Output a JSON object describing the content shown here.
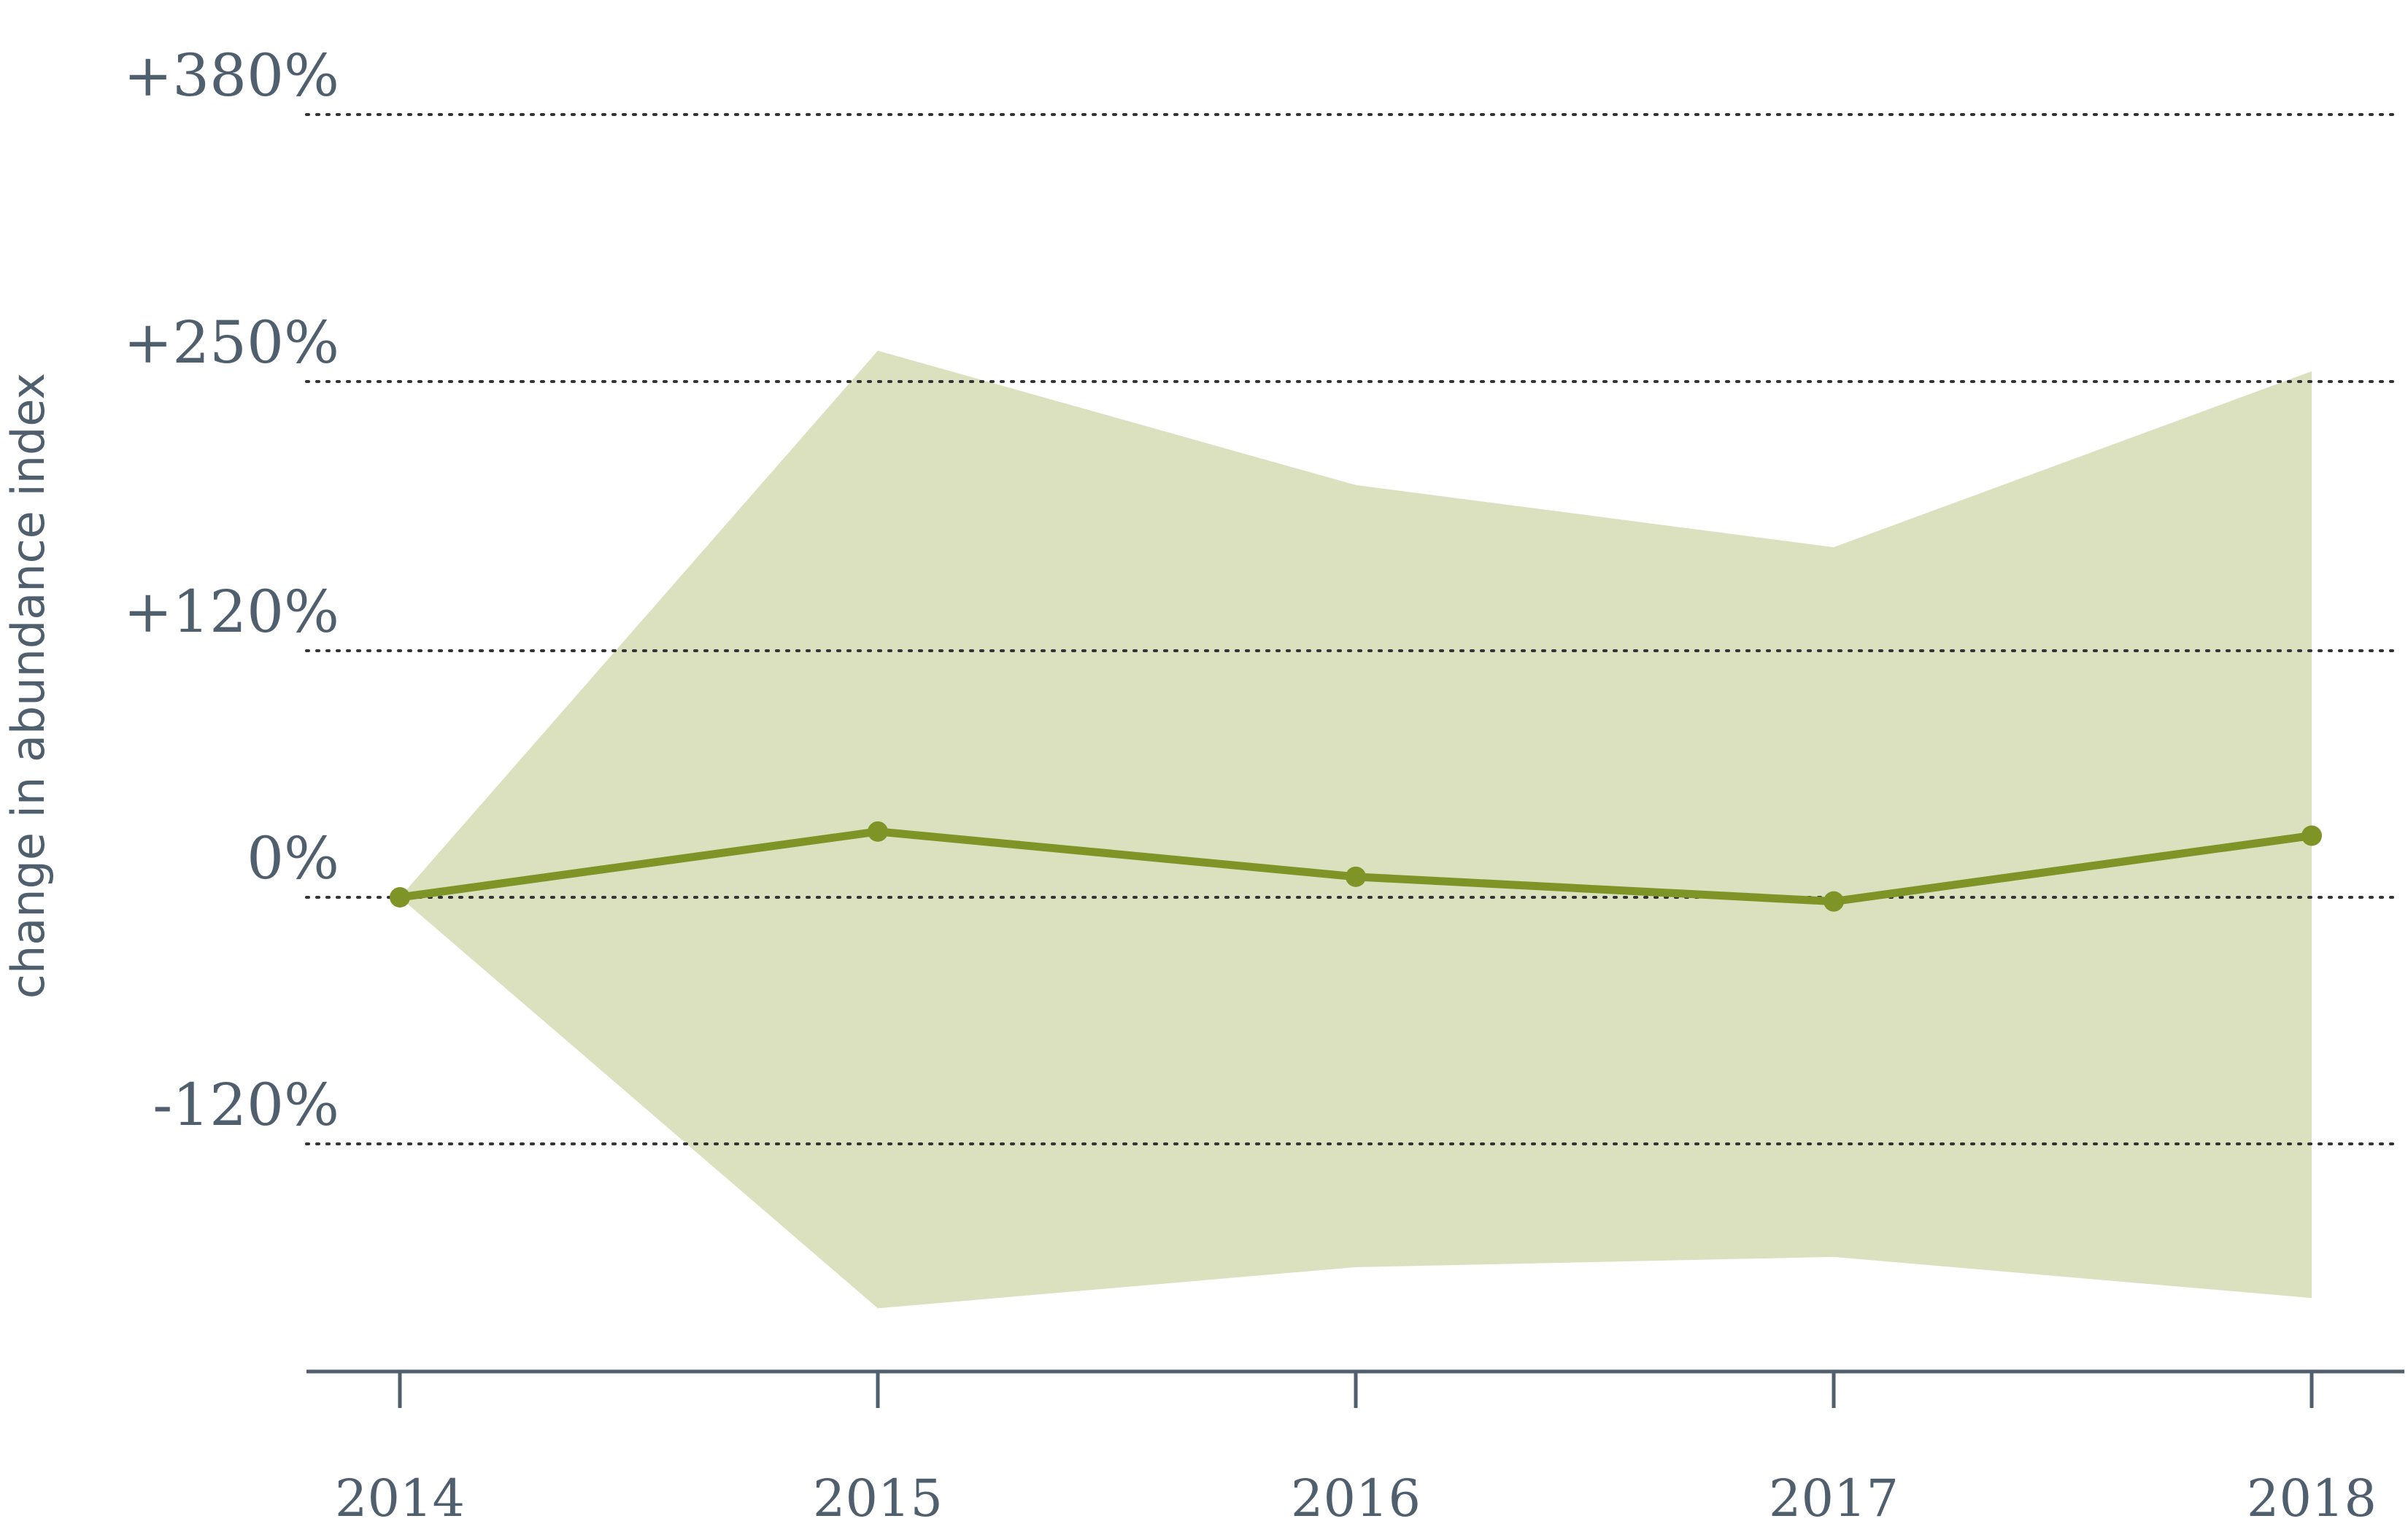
{
  "chart_data": {
    "type": "line",
    "title": "",
    "xlabel": "",
    "ylabel": "change in abundance index",
    "x": [
      "2014",
      "2015",
      "2016",
      "2017",
      "2018"
    ],
    "series": [
      {
        "values": [
          0,
          32,
          10,
          -2,
          30
        ]
      }
    ],
    "confidence_band": {
      "upper": [
        0,
        265,
        200,
        170,
        255
      ],
      "lower": [
        0,
        -200,
        -180,
        -175,
        -195
      ]
    },
    "y_ticks": [
      -120,
      0,
      120,
      250,
      380
    ],
    "y_tick_labels": [
      "-120%",
      "0%",
      "+120%",
      "+250%",
      "+380%"
    ],
    "ylim": [
      -230,
      380
    ],
    "grid": true,
    "colors": {
      "line": "#7f9426",
      "band": "#dbe1bf",
      "axis": "#4f5f6e",
      "grid": "#333333"
    }
  }
}
